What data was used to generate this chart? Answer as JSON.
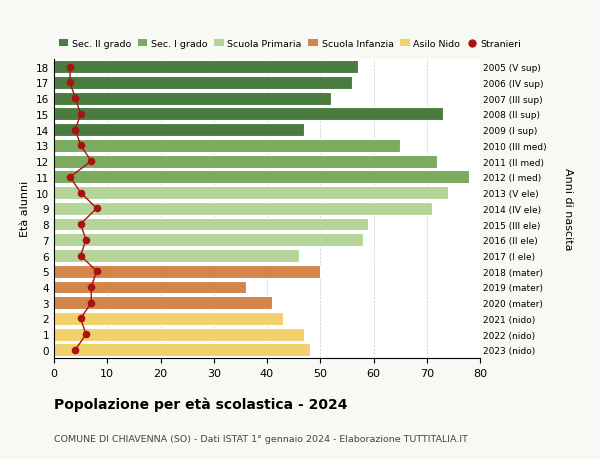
{
  "ages": [
    18,
    17,
    16,
    15,
    14,
    13,
    12,
    11,
    10,
    9,
    8,
    7,
    6,
    5,
    4,
    3,
    2,
    1,
    0
  ],
  "values": [
    57,
    56,
    52,
    73,
    47,
    65,
    72,
    78,
    74,
    71,
    59,
    58,
    46,
    50,
    36,
    41,
    43,
    47,
    48
  ],
  "stranieri": [
    3,
    3,
    4,
    5,
    4,
    5,
    7,
    3,
    5,
    8,
    5,
    6,
    5,
    8,
    7,
    7,
    5,
    6,
    4
  ],
  "year_labels": [
    "2005 (V sup)",
    "2006 (IV sup)",
    "2007 (III sup)",
    "2008 (II sup)",
    "2009 (I sup)",
    "2010 (III med)",
    "2011 (II med)",
    "2012 (I med)",
    "2013 (V ele)",
    "2014 (IV ele)",
    "2015 (III ele)",
    "2016 (II ele)",
    "2017 (I ele)",
    "2018 (mater)",
    "2019 (mater)",
    "2020 (mater)",
    "2021 (nido)",
    "2022 (nido)",
    "2023 (nido)"
  ],
  "bar_colors": [
    "#4a7c3f",
    "#4a7c3f",
    "#4a7c3f",
    "#4a7c3f",
    "#4a7c3f",
    "#7aab5e",
    "#7aab5e",
    "#7aab5e",
    "#b5d49a",
    "#b5d49a",
    "#b5d49a",
    "#b5d49a",
    "#b5d49a",
    "#d4854a",
    "#d4854a",
    "#d4854a",
    "#f2d06b",
    "#f2d06b",
    "#f2d06b"
  ],
  "stranieri_color": "#aa1111",
  "legend_labels": [
    "Sec. II grado",
    "Sec. I grado",
    "Scuola Primaria",
    "Scuola Infanzia",
    "Asilo Nido",
    "Stranieri"
  ],
  "legend_colors": [
    "#4a7c3f",
    "#7aab5e",
    "#b5d49a",
    "#d4854a",
    "#f2d06b",
    "#aa1111"
  ],
  "title": "Popolazione per età scolastica - 2024",
  "subtitle": "COMUNE DI CHIAVENNA (SO) - Dati ISTAT 1° gennaio 2024 - Elaborazione TUTTITALIA.IT",
  "xlabel_right": "Anni di nascita",
  "ylabel": "Età alunni",
  "xlim": [
    0,
    80
  ],
  "bg_color": "#f8f8f4",
  "plot_bg_color": "#ffffff",
  "grid_color": "#cccccc"
}
